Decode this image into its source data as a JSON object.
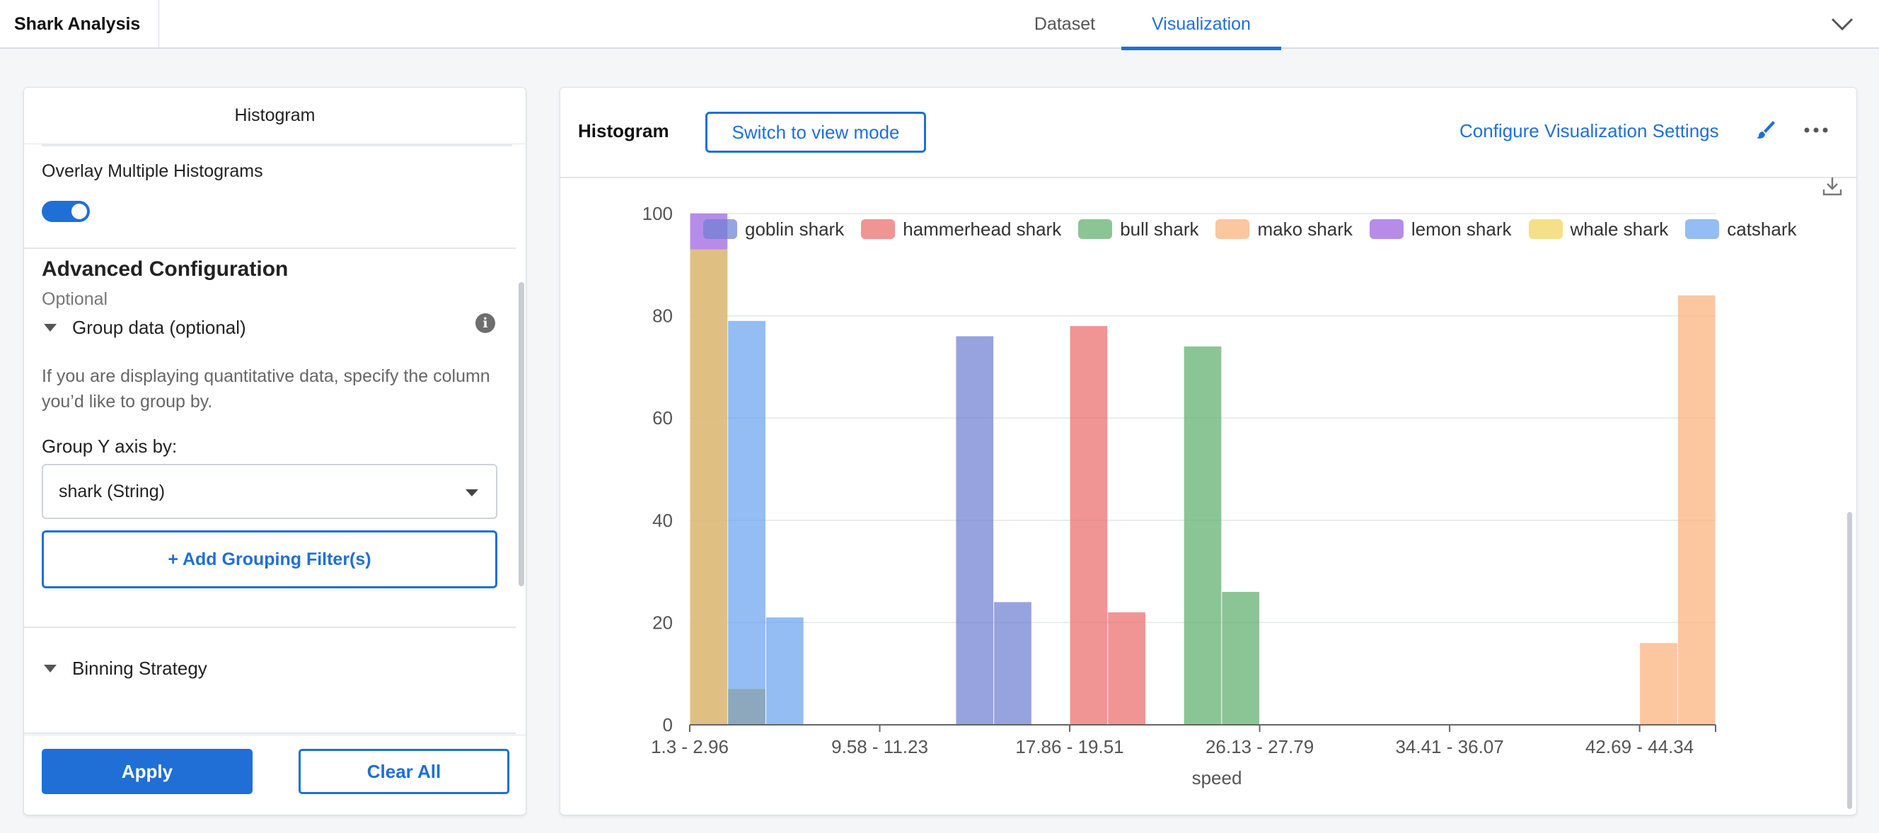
{
  "app": {
    "title": "Shark Analysis"
  },
  "tabs": [
    {
      "label": "Dataset",
      "active": false
    },
    {
      "label": "Visualization",
      "active": true
    }
  ],
  "left_panel": {
    "header": "Histogram",
    "overlay_label": "Overlay Multiple Histograms",
    "overlay_enabled": true,
    "advanced": {
      "title": "Advanced Configuration",
      "subtitle": "Optional",
      "group_section": {
        "title": "Group data (optional)",
        "description": "If you are displaying quantitative data, specify the column you’d like to group by.",
        "group_y_label": "Group Y axis by:",
        "group_y_value": "shark (String)",
        "add_filter_label": "+ Add Grouping Filter(s)"
      },
      "binning_title": "Binning Strategy"
    },
    "footer": {
      "apply_label": "Apply",
      "clear_label": "Clear All"
    }
  },
  "right_panel": {
    "title": "Histogram",
    "view_mode_label": "Switch to view mode",
    "configure_label": "Configure Visualization Settings",
    "icons": [
      "paintbrush-icon",
      "more-icon",
      "download-icon"
    ]
  },
  "chart_data": {
    "type": "bar",
    "xlabel": "speed",
    "ylabel": "",
    "ylim": [
      0,
      100
    ],
    "yticks": [
      0,
      20,
      40,
      60,
      80,
      100
    ],
    "xtick_labels": [
      "1.3 - 2.96",
      "9.58 - 11.23",
      "17.86 - 19.51",
      "26.13 - 27.79",
      "34.41 - 36.07",
      "42.69 - 44.34"
    ],
    "xtick_bins": [
      0,
      5,
      10,
      15,
      20,
      25
    ],
    "bin_count": 27,
    "grid": true,
    "legend_placement": "top",
    "series": [
      {
        "name": "goblin shark",
        "color": "#6f7fd2",
        "bins": [
          7,
          8
        ],
        "values": [
          76,
          24
        ]
      },
      {
        "name": "hammerhead shark",
        "color": "#ec6b6b",
        "bins": [
          10,
          11
        ],
        "values": [
          78,
          22
        ]
      },
      {
        "name": "bull shark",
        "color": "#5fae6c",
        "bins": [
          13,
          14
        ],
        "values": [
          74,
          26
        ]
      },
      {
        "name": "mako shark",
        "color": "#fbb27a",
        "bins": [
          25,
          26
        ],
        "values": [
          16,
          84
        ]
      },
      {
        "name": "lemon shark",
        "color": "#9b5fe0",
        "bins": [
          0
        ],
        "values": [
          100
        ]
      },
      {
        "name": "whale shark",
        "color": "#f0d45a",
        "bins": [
          0
        ],
        "values": [
          93
        ]
      },
      {
        "name": "catshark",
        "color": "#6aa3ef",
        "bins": [
          1,
          2
        ],
        "values": [
          79,
          21
        ]
      },
      {
        "name": "",
        "color": "#8aa0a8",
        "bins": [
          1
        ],
        "values": [
          7
        ]
      }
    ]
  }
}
